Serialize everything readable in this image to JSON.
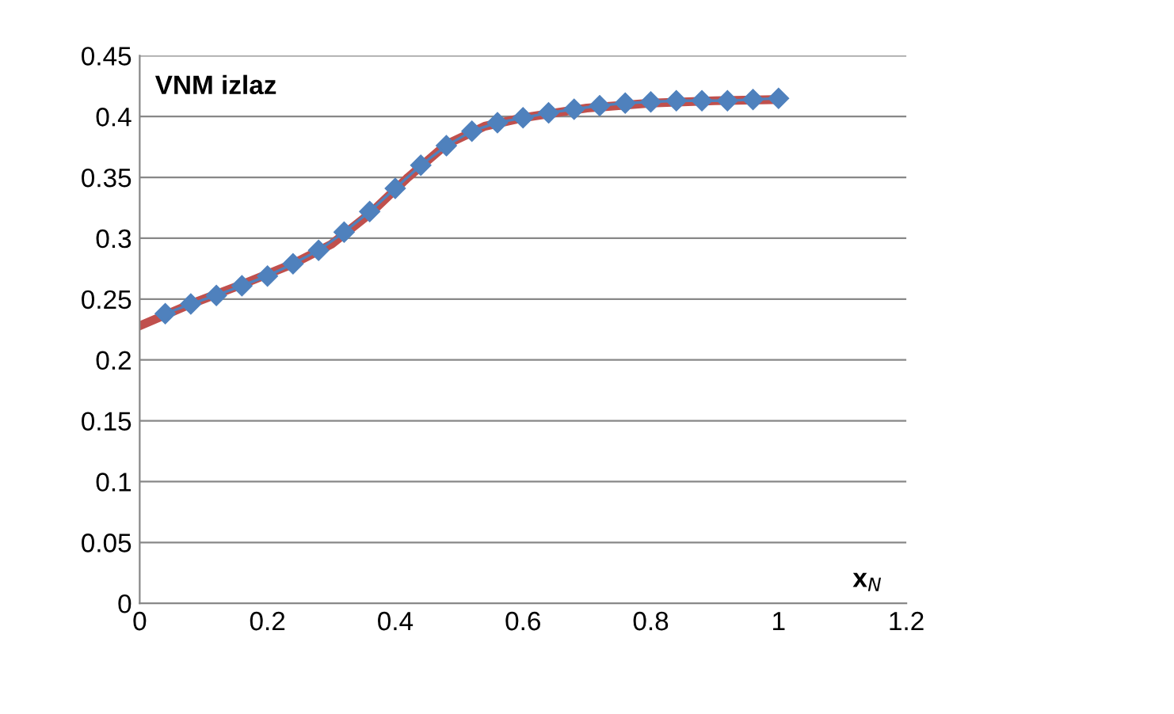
{
  "chart_data": {
    "type": "line",
    "title": "VNM izlaz",
    "xlabel": "x$_{N}$",
    "xlim": [
      0,
      1.2
    ],
    "xticks": [
      0,
      0.2,
      0.4,
      0.6,
      0.8,
      1,
      1.2
    ],
    "ylim": [
      0,
      0.45
    ],
    "yticks": [
      0,
      0.05,
      0.1,
      0.15,
      0.2,
      0.25,
      0.3,
      0.35,
      0.4,
      0.45
    ],
    "grid": "y",
    "series": [
      {
        "color": "#4f81bd",
        "marker": "diamond",
        "x": [
          0.04,
          0.08,
          0.12,
          0.16,
          0.2,
          0.24,
          0.28,
          0.32,
          0.36,
          0.4,
          0.44,
          0.48,
          0.52,
          0.56,
          0.6,
          0.64,
          0.68,
          0.72,
          0.76,
          0.8,
          0.84,
          0.88,
          0.92,
          0.96,
          1.0
        ],
        "values": [
          0.238,
          0.246,
          0.253,
          0.261,
          0.269,
          0.279,
          0.29,
          0.305,
          0.322,
          0.341,
          0.36,
          0.376,
          0.388,
          0.395,
          0.399,
          0.403,
          0.406,
          0.409,
          0.411,
          0.412,
          0.413,
          0.413,
          0.413,
          0.414,
          0.415
        ]
      },
      {
        "color": "#c0504d",
        "marker": "none",
        "x": [
          0,
          0.08,
          0.16,
          0.24,
          0.3,
          0.36,
          0.42,
          0.48,
          0.54,
          0.6,
          0.7,
          0.8,
          0.9,
          1.0
        ],
        "values": [
          0.228,
          0.246,
          0.262,
          0.279,
          0.295,
          0.32,
          0.35,
          0.377,
          0.392,
          0.399,
          0.407,
          0.411,
          0.413,
          0.414
        ]
      }
    ]
  }
}
